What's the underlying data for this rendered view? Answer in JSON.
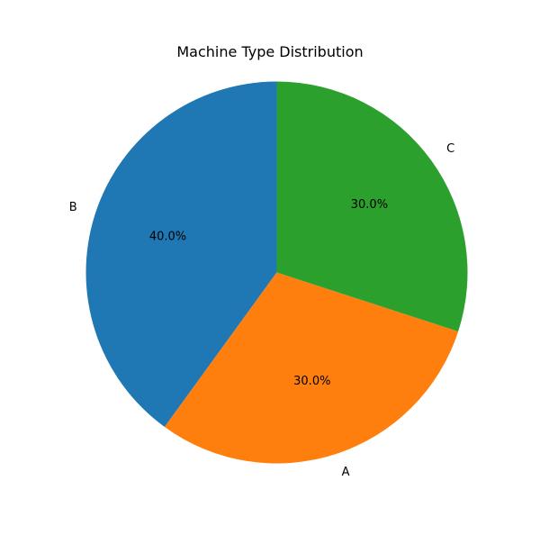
{
  "chart_data": {
    "type": "pie",
    "title": "Machine Type Distribution",
    "slices": [
      {
        "label": "B",
        "value": 40.0,
        "percent_label": "40.0%",
        "color": "#1f77b4"
      },
      {
        "label": "A",
        "value": 30.0,
        "percent_label": "30.0%",
        "color": "#ff7f0e"
      },
      {
        "label": "C",
        "value": 30.0,
        "percent_label": "30.0%",
        "color": "#2ca02c"
      }
    ],
    "legend": "none"
  }
}
